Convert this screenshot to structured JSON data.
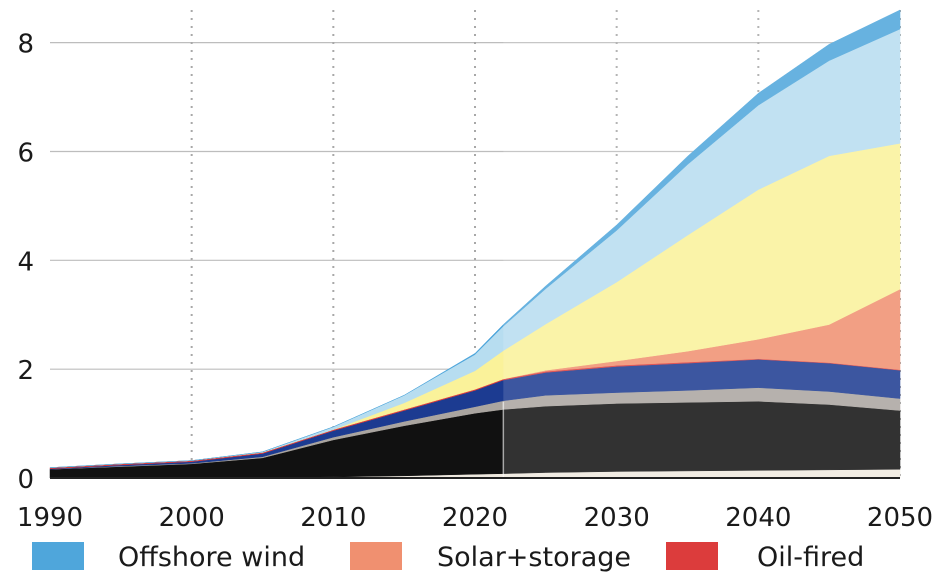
{
  "chart_data": {
    "type": "area",
    "stacked": true,
    "x": [
      1990,
      1995,
      2000,
      2005,
      2010,
      2015,
      2020,
      2022,
      2025,
      2030,
      2035,
      2040,
      2045,
      2050
    ],
    "xlim": [
      1990,
      2050
    ],
    "ylim": [
      0,
      8.6
    ],
    "xticks": [
      "1990",
      "2000",
      "2010",
      "2020",
      "2030",
      "2040",
      "2050"
    ],
    "yticks": [
      "0",
      "2",
      "4",
      "6",
      "8"
    ],
    "grid": {
      "horizontal": true,
      "vertical": "dotted"
    },
    "legend_position": "bottom",
    "series": [
      {
        "id": "s1",
        "color": "#efe9df",
        "values": [
          0,
          0,
          0,
          0.01,
          0.02,
          0.04,
          0.07,
          0.08,
          0.1,
          0.12,
          0.13,
          0.14,
          0.15,
          0.16
        ]
      },
      {
        "id": "s2",
        "color": "#111111",
        "values": [
          0.16,
          0.21,
          0.26,
          0.36,
          0.68,
          0.92,
          1.12,
          1.18,
          1.22,
          1.25,
          1.26,
          1.27,
          1.2,
          1.08
        ]
      },
      {
        "id": "s3",
        "color": "#aaa5a0",
        "values": [
          0,
          0.01,
          0.01,
          0.02,
          0.05,
          0.08,
          0.12,
          0.16,
          0.2,
          0.2,
          0.22,
          0.25,
          0.24,
          0.22
        ]
      },
      {
        "id": "s4",
        "color": "#1c3b91",
        "values": [
          0.01,
          0.02,
          0.03,
          0.06,
          0.12,
          0.2,
          0.3,
          0.38,
          0.42,
          0.48,
          0.5,
          0.52,
          0.52,
          0.52
        ]
      },
      {
        "name": "Oil-fired",
        "color": "#dc3c3c",
        "values": [
          0.02,
          0.02,
          0.02,
          0.02,
          0.02,
          0.02,
          0.02,
          0.02,
          0.02,
          0.02,
          0.02,
          0.01,
          0.01,
          0.01
        ]
      },
      {
        "name": "Solar+storage",
        "color": "#f09070",
        "values": [
          0,
          0,
          0,
          0,
          0,
          0,
          0,
          0,
          0.02,
          0.08,
          0.2,
          0.36,
          0.7,
          1.48
        ]
      },
      {
        "id": "s7",
        "color": "#faf29a",
        "values": [
          0,
          0,
          0,
          0,
          0,
          0.12,
          0.34,
          0.52,
          0.85,
          1.45,
          2.13,
          2.75,
          3.1,
          2.68
        ]
      },
      {
        "id": "s8",
        "color": "#b7ddf0",
        "values": [
          0,
          0,
          0,
          0.01,
          0.05,
          0.14,
          0.3,
          0.45,
          0.65,
          0.95,
          1.3,
          1.55,
          1.75,
          2.1
        ]
      },
      {
        "name": "Offshore wind",
        "color": "#4fa6db",
        "values": [
          0,
          0,
          0,
          0,
          0,
          0,
          0.02,
          0.03,
          0.05,
          0.1,
          0.15,
          0.22,
          0.3,
          0.35
        ]
      }
    ],
    "legend": [
      {
        "label": "Offshore wind",
        "color": "#4fa6db"
      },
      {
        "label": "Solar+storage",
        "color": "#f09070"
      },
      {
        "label": "Oil-fired",
        "color": "#dc3c3c"
      }
    ]
  }
}
